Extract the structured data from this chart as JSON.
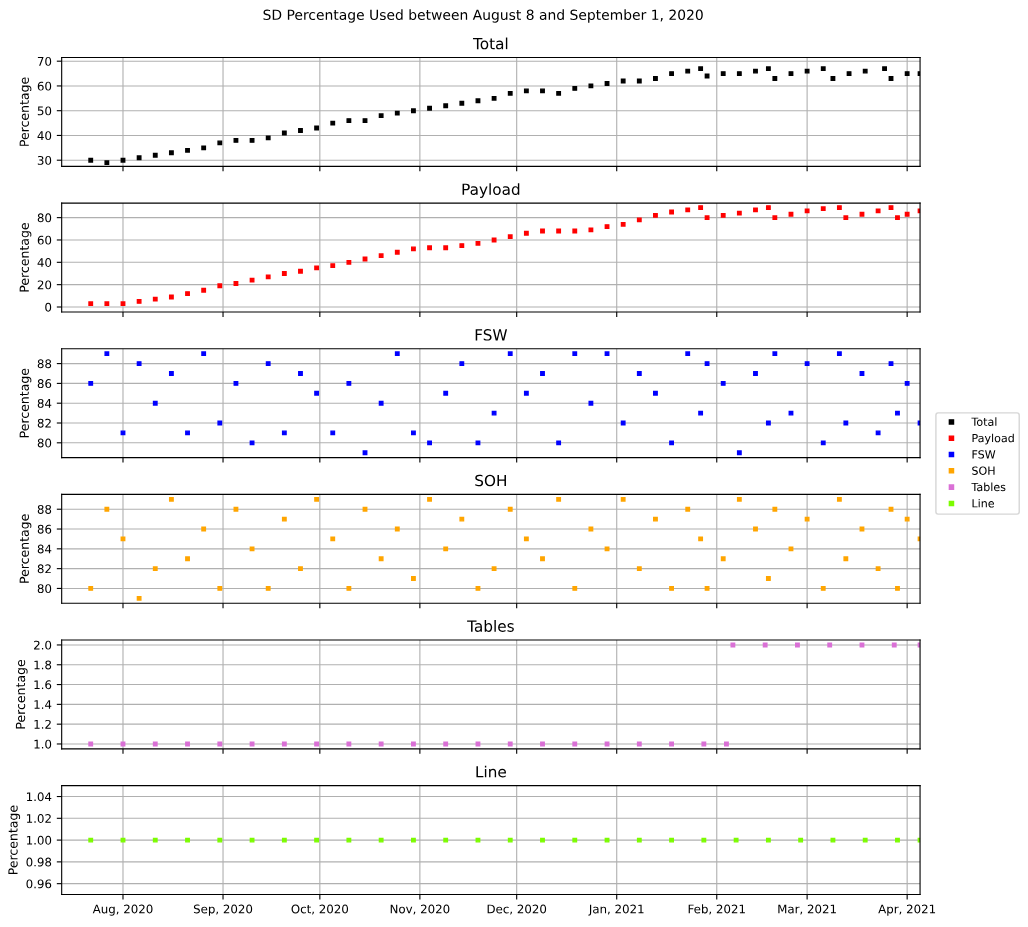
{
  "chart_data": [
    {
      "type": "scatter",
      "title": "Total",
      "ylabel": "Percentage",
      "annotations": [
        "SD Percentage Used between August 8 and September 1, 2020"
      ],
      "marker": "square",
      "grid": true,
      "legend": "right",
      "tick_labels": "y",
      "xlim": [
        "2020-07-13",
        "2021-04-05"
      ],
      "ylim": [
        27.5,
        71.5
      ],
      "yticks": [
        30,
        40,
        50,
        60,
        70
      ],
      "x": [
        "2020-07-22",
        "2020-07-27",
        "2020-08-01",
        "2020-08-06",
        "2020-08-11",
        "2020-08-16",
        "2020-08-21",
        "2020-08-26",
        "2020-08-31",
        "2020-09-05",
        "2020-09-10",
        "2020-09-15",
        "2020-09-20",
        "2020-09-25",
        "2020-09-30",
        "2020-10-05",
        "2020-10-10",
        "2020-10-15",
        "2020-10-20",
        "2020-10-25",
        "2020-10-30",
        "2020-11-04",
        "2020-11-09",
        "2020-11-14",
        "2020-11-19",
        "2020-11-24",
        "2020-11-29",
        "2020-12-04",
        "2020-12-09",
        "2020-12-14",
        "2020-12-19",
        "2020-12-24",
        "2020-12-29",
        "2021-01-03",
        "2021-01-08",
        "2021-01-13",
        "2021-01-18",
        "2021-01-23",
        "2021-01-27",
        "2021-01-29",
        "2021-02-03",
        "2021-02-08",
        "2021-02-13",
        "2021-02-17",
        "2021-02-19",
        "2021-02-24",
        "2021-03-01",
        "2021-03-06",
        "2021-03-09",
        "2021-03-14",
        "2021-03-19",
        "2021-03-25",
        "2021-03-27",
        "2021-04-01",
        "2021-04-05"
      ],
      "series": [
        {
          "name": "Total",
          "color": "#000000",
          "values": [
            30,
            29,
            30,
            31,
            32,
            33,
            34,
            35,
            37,
            38,
            38,
            39,
            41,
            42,
            43,
            45,
            46,
            46,
            48,
            49,
            50,
            51,
            52,
            53,
            54,
            55,
            57,
            58,
            58,
            57,
            59,
            60,
            61,
            62,
            62,
            63,
            65,
            66,
            67,
            64,
            65,
            65,
            66,
            67,
            63,
            65,
            66,
            67,
            63,
            65,
            66,
            67,
            63,
            65,
            65
          ]
        }
      ]
    },
    {
      "type": "scatter",
      "title": "Payload",
      "ylabel": "Percentage",
      "marker": "square",
      "grid": true,
      "legend": "right",
      "tick_labels": "y",
      "xlim": [
        "2020-07-13",
        "2021-04-05"
      ],
      "ylim": [
        -4.5,
        93
      ],
      "yticks": [
        0,
        20,
        40,
        60,
        80
      ],
      "x": [
        "2020-07-22",
        "2020-07-27",
        "2020-08-01",
        "2020-08-06",
        "2020-08-11",
        "2020-08-16",
        "2020-08-21",
        "2020-08-26",
        "2020-08-31",
        "2020-09-05",
        "2020-09-10",
        "2020-09-15",
        "2020-09-20",
        "2020-09-25",
        "2020-09-30",
        "2020-10-05",
        "2020-10-10",
        "2020-10-15",
        "2020-10-20",
        "2020-10-25",
        "2020-10-30",
        "2020-11-04",
        "2020-11-09",
        "2020-11-14",
        "2020-11-19",
        "2020-11-24",
        "2020-11-29",
        "2020-12-04",
        "2020-12-09",
        "2020-12-14",
        "2020-12-19",
        "2020-12-24",
        "2020-12-29",
        "2021-01-03",
        "2021-01-08",
        "2021-01-13",
        "2021-01-18",
        "2021-01-23",
        "2021-01-27",
        "2021-01-29",
        "2021-02-03",
        "2021-02-08",
        "2021-02-13",
        "2021-02-17",
        "2021-02-19",
        "2021-02-24",
        "2021-03-01",
        "2021-03-06",
        "2021-03-11",
        "2021-03-13",
        "2021-03-18",
        "2021-03-23",
        "2021-03-27",
        "2021-03-29",
        "2021-04-01",
        "2021-04-05"
      ],
      "series": [
        {
          "name": "Payload",
          "color": "#ff0000",
          "values": [
            3,
            3,
            3,
            5,
            7,
            9,
            12,
            15,
            19,
            21,
            24,
            27,
            30,
            32,
            35,
            37,
            40,
            43,
            46,
            49,
            52,
            53,
            53,
            55,
            57,
            60,
            63,
            66,
            68,
            68,
            68,
            69,
            72,
            74,
            78,
            82,
            85,
            87,
            89,
            80,
            82,
            84,
            87,
            89,
            80,
            83,
            86,
            88,
            89,
            80,
            83,
            86,
            89,
            80,
            83,
            86
          ]
        }
      ]
    },
    {
      "type": "scatter",
      "title": "FSW",
      "ylabel": "Percentage",
      "marker": "square",
      "grid": true,
      "legend": "right",
      "tick_labels": "y",
      "xlim": [
        "2020-07-13",
        "2021-04-05"
      ],
      "ylim": [
        78.5,
        89.5
      ],
      "yticks": [
        80,
        82,
        84,
        86,
        88
      ],
      "x": [
        "2020-07-22",
        "2020-07-27",
        "2020-08-01",
        "2020-08-06",
        "2020-08-11",
        "2020-08-16",
        "2020-08-21",
        "2020-08-26",
        "2020-08-31",
        "2020-09-05",
        "2020-09-10",
        "2020-09-15",
        "2020-09-20",
        "2020-09-25",
        "2020-09-30",
        "2020-10-05",
        "2020-10-10",
        "2020-10-15",
        "2020-10-20",
        "2020-10-25",
        "2020-10-30",
        "2020-11-04",
        "2020-11-09",
        "2020-11-14",
        "2020-11-19",
        "2020-11-24",
        "2020-11-29",
        "2020-12-04",
        "2020-12-09",
        "2020-12-14",
        "2020-12-19",
        "2020-12-24",
        "2020-12-29",
        "2021-01-03",
        "2021-01-08",
        "2021-01-13",
        "2021-01-18",
        "2021-01-23",
        "2021-01-27",
        "2021-01-29",
        "2021-02-03",
        "2021-02-08",
        "2021-02-13",
        "2021-02-17",
        "2021-02-19",
        "2021-02-24",
        "2021-03-01",
        "2021-03-06",
        "2021-03-11",
        "2021-03-13",
        "2021-03-18",
        "2021-03-23",
        "2021-03-27",
        "2021-03-29",
        "2021-04-01",
        "2021-04-05"
      ],
      "series": [
        {
          "name": "FSW",
          "color": "#0000ff",
          "values": [
            86,
            89,
            81,
            88,
            84,
            87,
            81,
            89,
            82,
            86,
            80,
            88,
            81,
            87,
            85,
            81,
            86,
            79,
            84,
            89,
            81,
            80,
            85,
            88,
            80,
            83,
            89,
            85,
            87,
            80,
            89,
            84,
            89,
            82,
            87,
            85,
            80,
            89,
            83,
            88,
            86,
            79,
            87,
            82,
            89,
            83,
            88,
            80,
            89,
            82,
            87,
            81,
            88,
            83,
            86,
            82
          ]
        }
      ]
    },
    {
      "type": "scatter",
      "title": "SOH",
      "ylabel": "Percentage",
      "marker": "square",
      "grid": true,
      "legend": "right",
      "tick_labels": "y",
      "xlim": [
        "2020-07-13",
        "2021-04-05"
      ],
      "ylim": [
        78.5,
        89.5
      ],
      "yticks": [
        80,
        82,
        84,
        86,
        88
      ],
      "x": [
        "2020-07-22",
        "2020-07-27",
        "2020-08-01",
        "2020-08-06",
        "2020-08-11",
        "2020-08-16",
        "2020-08-21",
        "2020-08-26",
        "2020-08-31",
        "2020-09-05",
        "2020-09-10",
        "2020-09-15",
        "2020-09-20",
        "2020-09-25",
        "2020-09-30",
        "2020-10-05",
        "2020-10-10",
        "2020-10-15",
        "2020-10-20",
        "2020-10-25",
        "2020-10-30",
        "2020-11-04",
        "2020-11-09",
        "2020-11-14",
        "2020-11-19",
        "2020-11-24",
        "2020-11-29",
        "2020-12-04",
        "2020-12-09",
        "2020-12-14",
        "2020-12-19",
        "2020-12-24",
        "2020-12-29",
        "2021-01-03",
        "2021-01-08",
        "2021-01-13",
        "2021-01-18",
        "2021-01-23",
        "2021-01-27",
        "2021-01-29",
        "2021-02-03",
        "2021-02-08",
        "2021-02-13",
        "2021-02-17",
        "2021-02-19",
        "2021-02-24",
        "2021-03-01",
        "2021-03-06",
        "2021-03-11",
        "2021-03-13",
        "2021-03-18",
        "2021-03-23",
        "2021-03-27",
        "2021-03-29",
        "2021-04-01",
        "2021-04-05"
      ],
      "series": [
        {
          "name": "SOH",
          "color": "#ffa500",
          "values": [
            80,
            88,
            85,
            79,
            82,
            89,
            83,
            86,
            80,
            88,
            84,
            80,
            87,
            82,
            89,
            85,
            80,
            88,
            83,
            86,
            81,
            89,
            84,
            87,
            80,
            82,
            88,
            85,
            83,
            89,
            80,
            86,
            84,
            89,
            82,
            87,
            80,
            88,
            85,
            80,
            83,
            89,
            86,
            81,
            88,
            84,
            87,
            80,
            89,
            83,
            86,
            82,
            88,
            80,
            87,
            85
          ]
        }
      ]
    },
    {
      "type": "scatter",
      "title": "Tables",
      "ylabel": "Percentage",
      "marker": "square",
      "grid": true,
      "legend": "right",
      "tick_labels": "y",
      "xlim": [
        "2020-07-13",
        "2021-04-05"
      ],
      "ylim": [
        0.95,
        2.05
      ],
      "yticks": [
        {
          "value": 1.0,
          "label": "1.0"
        },
        {
          "value": 1.2,
          "label": "1.2"
        },
        {
          "value": 1.4,
          "label": "1.4"
        },
        {
          "value": 1.6,
          "label": "1.6"
        },
        {
          "value": 1.8,
          "label": "1.8"
        },
        {
          "value": 2.0,
          "label": "2.0"
        }
      ],
      "x": [
        "2020-07-22",
        "2020-08-01",
        "2020-08-11",
        "2020-08-21",
        "2020-08-31",
        "2020-09-10",
        "2020-09-20",
        "2020-09-30",
        "2020-10-10",
        "2020-10-20",
        "2020-10-30",
        "2020-11-09",
        "2020-11-19",
        "2020-11-29",
        "2020-12-09",
        "2020-12-19",
        "2020-12-29",
        "2021-01-08",
        "2021-01-18",
        "2021-01-28",
        "2021-02-04",
        "2021-02-06",
        "2021-02-16",
        "2021-02-26",
        "2021-03-08",
        "2021-03-18",
        "2021-03-28",
        "2021-04-05"
      ],
      "series": [
        {
          "name": "Tables",
          "color": "#da70d6",
          "values": [
            1,
            1,
            1,
            1,
            1,
            1,
            1,
            1,
            1,
            1,
            1,
            1,
            1,
            1,
            1,
            1,
            1,
            1,
            1,
            1,
            1,
            2,
            2,
            2,
            2,
            2,
            2,
            2
          ]
        }
      ]
    },
    {
      "type": "scatter",
      "title": "Line",
      "ylabel": "Percentage",
      "marker": "square",
      "grid": true,
      "legend": "right",
      "xlim": [
        "2020-07-13",
        "2021-04-05"
      ],
      "ylim": [
        0.95,
        1.05
      ],
      "yticks": [
        {
          "value": 0.96,
          "label": "0.96"
        },
        {
          "value": 0.98,
          "label": "0.98"
        },
        {
          "value": 1.0,
          "label": "1.00"
        },
        {
          "value": 1.02,
          "label": "1.02"
        },
        {
          "value": 1.04,
          "label": "1.04"
        }
      ],
      "xticks": [
        {
          "value": "2020-08-01",
          "label": "Aug, 2020"
        },
        {
          "value": "2020-09-01",
          "label": "Sep, 2020"
        },
        {
          "value": "2020-10-01",
          "label": "Oct, 2020"
        },
        {
          "value": "2020-11-01",
          "label": "Nov, 2020"
        },
        {
          "value": "2020-12-01",
          "label": "Dec, 2020"
        },
        {
          "value": "2021-01-01",
          "label": "Jan, 2021"
        },
        {
          "value": "2021-02-01",
          "label": "Feb, 2021"
        },
        {
          "value": "2021-03-01",
          "label": "Mar, 2021"
        },
        {
          "value": "2021-04-01",
          "label": "Apr, 2021"
        }
      ],
      "x": [
        "2020-07-22",
        "2020-08-01",
        "2020-08-11",
        "2020-08-21",
        "2020-08-31",
        "2020-09-10",
        "2020-09-20",
        "2020-09-30",
        "2020-10-10",
        "2020-10-20",
        "2020-10-30",
        "2020-11-09",
        "2020-11-19",
        "2020-11-29",
        "2020-12-09",
        "2020-12-19",
        "2020-12-29",
        "2021-01-08",
        "2021-01-18",
        "2021-01-28",
        "2021-02-07",
        "2021-02-17",
        "2021-02-27",
        "2021-03-09",
        "2021-03-19",
        "2021-03-29",
        "2021-04-05"
      ],
      "series": [
        {
          "name": "Line",
          "color": "#7cfc00",
          "values": [
            1,
            1,
            1,
            1,
            1,
            1,
            1,
            1,
            1,
            1,
            1,
            1,
            1,
            1,
            1,
            1,
            1,
            1,
            1,
            1,
            1,
            1,
            1,
            1,
            1,
            1,
            1
          ]
        }
      ]
    }
  ]
}
